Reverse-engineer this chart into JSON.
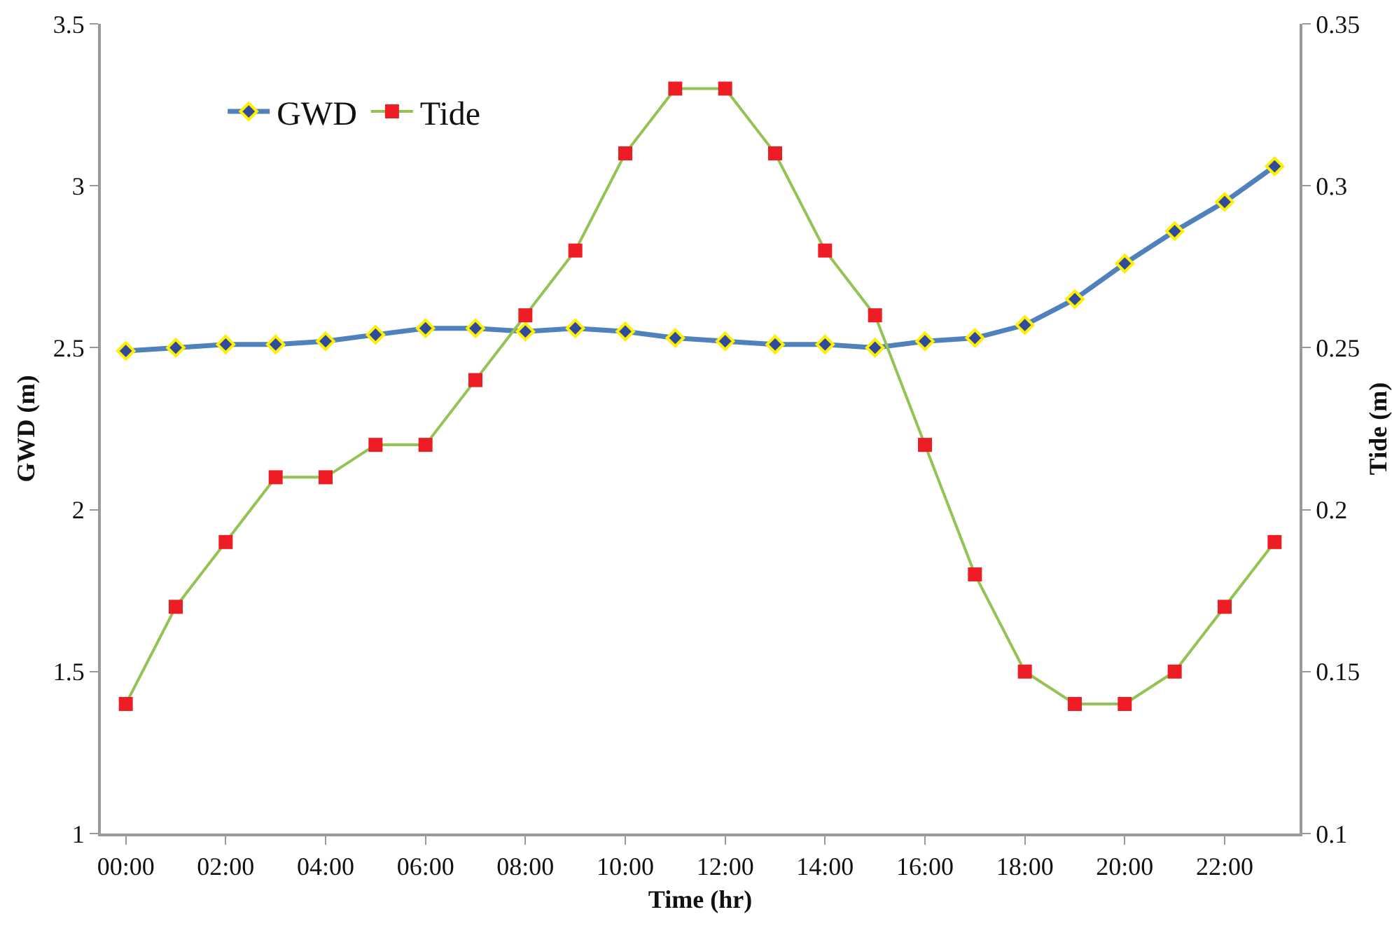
{
  "chart_data": {
    "type": "line",
    "xlabel": "Time (hr)",
    "ylabel": "GWD (m)",
    "y2label": "Tide (m)",
    "x": [
      0,
      1,
      2,
      3,
      4,
      5,
      6,
      7,
      8,
      9,
      10,
      11,
      12,
      13,
      14,
      15,
      16,
      17,
      18,
      19,
      20,
      21,
      22,
      23
    ],
    "xlim": [
      -0.5,
      23.5
    ],
    "xticks": [
      {
        "value": 0,
        "label": "00:00"
      },
      {
        "value": 2,
        "label": "02:00"
      },
      {
        "value": 4,
        "label": "04:00"
      },
      {
        "value": 6,
        "label": "06:00"
      },
      {
        "value": 8,
        "label": "08:00"
      },
      {
        "value": 10,
        "label": "10:00"
      },
      {
        "value": 12,
        "label": "12:00"
      },
      {
        "value": 14,
        "label": "14:00"
      },
      {
        "value": 16,
        "label": "16:00"
      },
      {
        "value": 18,
        "label": "18:00"
      },
      {
        "value": 20,
        "label": "20:00"
      },
      {
        "value": 22,
        "label": "22:00"
      }
    ],
    "ylim": [
      1,
      3.5
    ],
    "yticks": [
      1,
      1.5,
      2,
      2.5,
      3,
      3.5
    ],
    "y2lim": [
      0.1,
      0.35
    ],
    "y2ticks": [
      0.1,
      0.15,
      0.2,
      0.25,
      0.3,
      0.35
    ],
    "grid": false,
    "legend": "top left",
    "line_style": "solid",
    "series": [
      {
        "name": "GWD",
        "color": "#4f81bd",
        "marker": "diamond",
        "values": [
          2.49,
          2.5,
          2.51,
          2.51,
          2.52,
          2.54,
          2.56,
          2.56,
          2.55,
          2.56,
          2.55,
          2.53,
          2.52,
          2.51,
          2.51,
          2.5,
          2.52,
          2.53,
          2.57,
          2.65,
          2.76,
          2.86,
          2.95,
          3.06
        ]
      },
      {
        "name": "Tide",
        "color": "#92c353",
        "marker": "square",
        "axis": "y2",
        "values": [
          0.14,
          0.17,
          0.19,
          0.21,
          0.21,
          0.22,
          0.22,
          0.24,
          0.26,
          0.28,
          0.31,
          0.33,
          0.33,
          0.31,
          0.28,
          0.26,
          0.22,
          0.18,
          0.15,
          0.14,
          0.14,
          0.15,
          0.17,
          0.19
        ]
      }
    ]
  }
}
